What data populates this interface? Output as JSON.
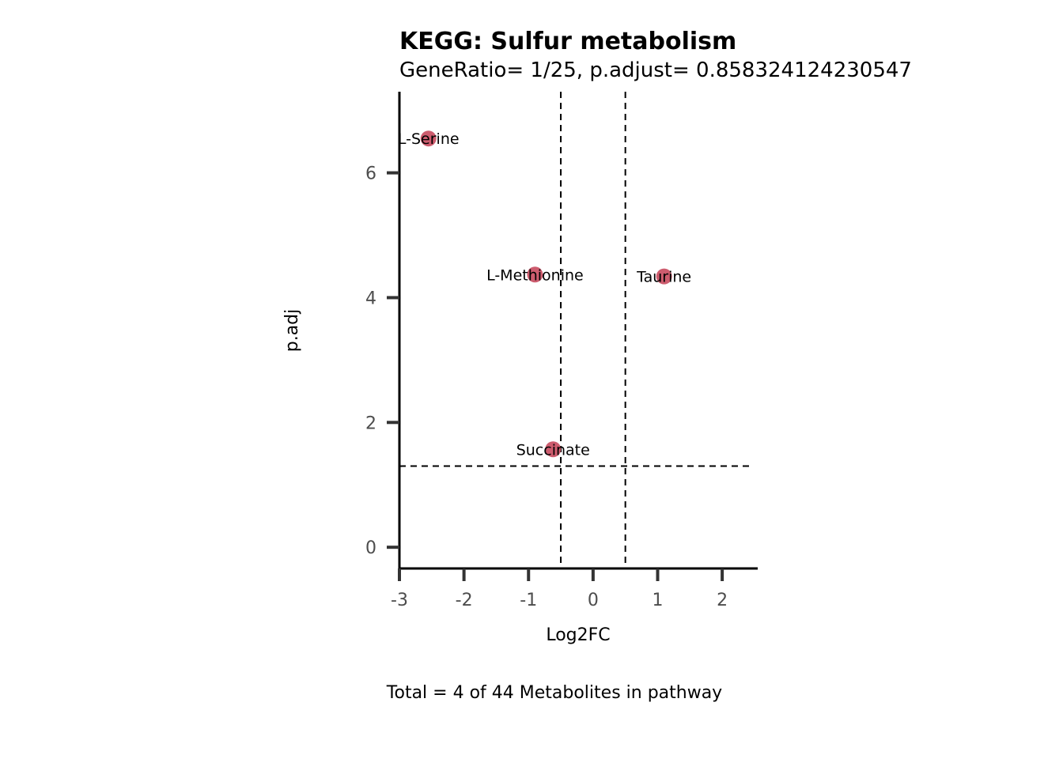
{
  "chart_data": {
    "type": "scatter",
    "title": "KEGG: Sulfur metabolism",
    "subtitle": "GeneRatio= 1/25, p.adjust= 0.858324124230547",
    "xlabel": "Log2FC",
    "ylabel": "p.adj",
    "caption": "Total = 4 of 44 Metabolites in pathway",
    "xlim": [
      -3,
      2.55
    ],
    "ylim": [
      -0.34,
      7.3
    ],
    "x_ticks": [
      -3,
      -2,
      -1,
      0,
      1,
      2
    ],
    "x_tick_labels": [
      "-3",
      "-2",
      "-1",
      "0",
      "1",
      "2"
    ],
    "y_ticks": [
      0,
      2,
      4,
      6
    ],
    "y_tick_labels": [
      "0",
      "2",
      "4",
      "6"
    ],
    "vlines": [
      -0.5,
      0.5
    ],
    "hlines": [
      1.3
    ],
    "point_color": "#cd5c6e",
    "points": [
      {
        "label": "L-Serine",
        "x": -2.55,
        "y": 6.55
      },
      {
        "label": "L-Methionine",
        "x": -0.9,
        "y": 4.37
      },
      {
        "label": "Taurine",
        "x": 1.1,
        "y": 4.34
      },
      {
        "label": "Succinate",
        "x": -0.62,
        "y": 1.57
      }
    ],
    "grid": false,
    "legend": "none"
  }
}
